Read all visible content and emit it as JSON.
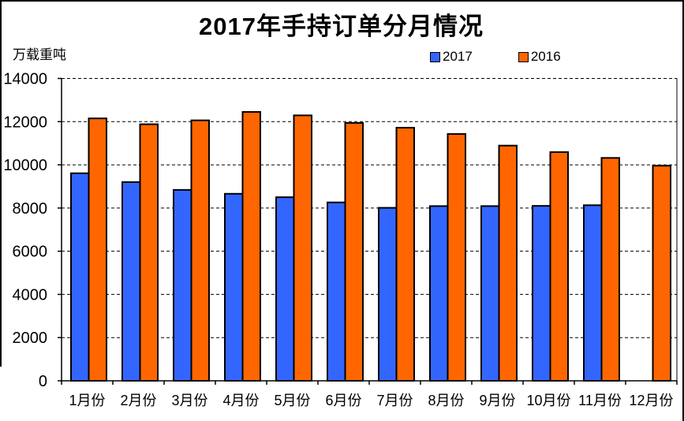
{
  "chart_data": {
    "type": "bar",
    "title": "2017年手持订单分月情况",
    "unit_label": "万载重吨",
    "categories": [
      "1月份",
      "2月份",
      "3月份",
      "4月份",
      "5月份",
      "6月份",
      "7月份",
      "8月份",
      "9月份",
      "10月份",
      "11月份",
      "12月份"
    ],
    "series": [
      {
        "name": "2017",
        "color": "#3366FF",
        "values": [
          9610,
          9200,
          8840,
          8660,
          8500,
          8260,
          8010,
          8090,
          8090,
          8100,
          8130,
          null
        ]
      },
      {
        "name": "2016",
        "color": "#FF6600",
        "values": [
          12150,
          11880,
          12060,
          12450,
          12290,
          11940,
          11720,
          11430,
          10890,
          10590,
          10320,
          9960
        ]
      }
    ],
    "ylabel": "",
    "xlabel": "",
    "ylim": [
      0,
      14000
    ],
    "ytick_step": 2000,
    "grid": "horizontal-dashed",
    "legend_position": "top",
    "bar_outline_color": "#000000",
    "gridline_color": "#000000"
  }
}
